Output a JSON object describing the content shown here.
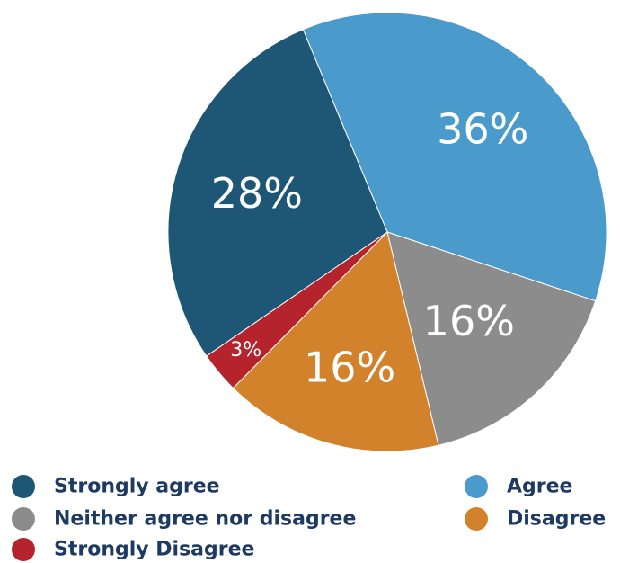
{
  "chart_data": {
    "type": "pie",
    "title": "",
    "slices": [
      {
        "name": "Agree",
        "value": 36,
        "label": "36%",
        "color": "#4a9bcc"
      },
      {
        "name": "Neither agree nor disagree",
        "value": 16,
        "label": "16%",
        "color": "#8c8c8c"
      },
      {
        "name": "Disagree",
        "value": 16,
        "label": "16%",
        "color": "#d2822b"
      },
      {
        "name": "Strongly Disagree",
        "value": 3,
        "label": "3%",
        "color": "#b5232d"
      },
      {
        "name": "Strongly agree",
        "value": 28,
        "label": "28%",
        "color": "#1e5676"
      }
    ],
    "legend": {
      "placement": "bottom",
      "entries": [
        {
          "label": "Strongly agree",
          "color": "#1e5676"
        },
        {
          "label": "Agree",
          "color": "#4a9bcc"
        },
        {
          "label": "Neither agree nor disagree",
          "color": "#8c8c8c"
        },
        {
          "label": "Disagree",
          "color": "#d2822b"
        },
        {
          "label": "Strongly Disagree",
          "color": "#b5232d"
        }
      ]
    }
  }
}
